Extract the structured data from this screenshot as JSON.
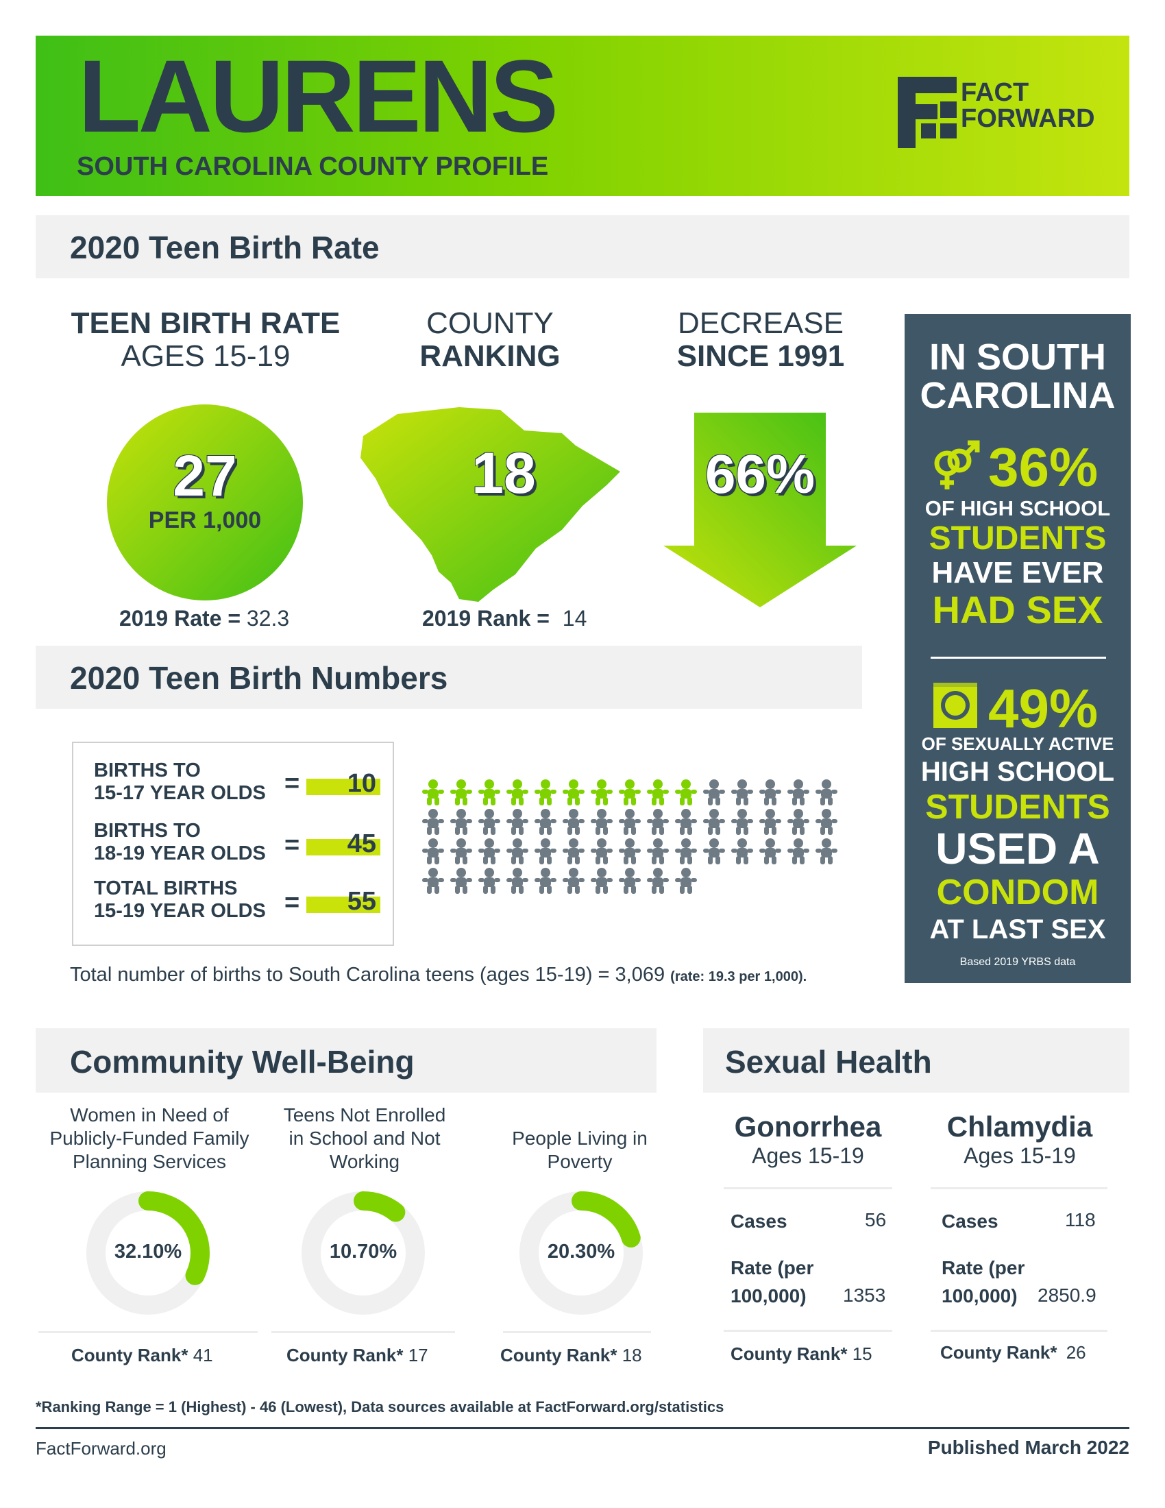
{
  "header": {
    "county": "LAURENS",
    "subtitle": "SOUTH CAROLINA COUNTY PROFILE",
    "logo_line1": "FACT",
    "logo_line2": "FORWARD"
  },
  "teen_birth_rate": {
    "section_title": "2020 Teen Birth Rate",
    "rate_head_1": "TEEN BIRTH RATE",
    "rate_head_2": "AGES 15-19",
    "rate_value": "27",
    "rate_unit": "PER 1,000",
    "rate_prev_label": "2019 Rate =",
    "rate_prev_value": "32.3",
    "rank_head_1": "COUNTY",
    "rank_head_2": "RANKING",
    "rank_value": "18",
    "rank_prev_label": "2019 Rank =",
    "rank_prev_value": "14",
    "decrease_head_1": "DECREASE",
    "decrease_head_2": "SINCE 1991",
    "decrease_value": "66%"
  },
  "sidebar": {
    "title_1": "IN SOUTH",
    "title_2": "CAROLINA",
    "stat1_value": "36%",
    "stat1_line1": "OF HIGH SCHOOL",
    "stat1_line2": "STUDENTS",
    "stat1_line3": "HAVE EVER",
    "stat1_line4": "HAD SEX",
    "stat2_value": "49%",
    "stat2_line1": "OF SEXUALLY ACTIVE",
    "stat2_line2": "HIGH SCHOOL",
    "stat2_line3": "STUDENTS",
    "stat2_line4": "USED A",
    "stat2_line5": "CONDOM",
    "stat2_line6": "AT LAST SEX",
    "source": "Based 2019 YRBS data",
    "icon1": "gender-symbols-icon",
    "icon2": "condom-icon"
  },
  "teen_birth_numbers": {
    "section_title": "2020 Teen Birth Numbers",
    "rows": [
      {
        "label_1": "BIRTHS TO",
        "label_2": "15-17 YEAR OLDS",
        "eq": "=",
        "value": "10"
      },
      {
        "label_1": "BIRTHS TO",
        "label_2": "18-19 YEAR OLDS",
        "eq": "=",
        "value": "45"
      },
      {
        "label_1": "TOTAL BIRTHS",
        "label_2": "15-19 YEAR OLDS",
        "eq": "=",
        "value": "55"
      }
    ],
    "pictogram": {
      "highlighted": 10,
      "total": 55,
      "per_row": 15,
      "highlight_color": "#7fd200",
      "base_color": "#6e7b84"
    },
    "state_total_text": "Total number of births to South Carolina teens (ages 15-19) = 3,069",
    "state_rate_text": "(rate: 19.3 per 1,000)."
  },
  "community": {
    "section_title": "Community Well-Being",
    "items": [
      {
        "label_1": "Women in Need of",
        "label_2": "Publicly-Funded Family",
        "label_3": "Planning Services",
        "value": "32.10%",
        "fraction": 0.321,
        "rank_label": "County Rank*",
        "rank": "41"
      },
      {
        "label_1": "Teens Not Enrolled",
        "label_2": "in School and Not",
        "label_3": "Working",
        "value": "10.70%",
        "fraction": 0.107,
        "rank_label": "County Rank*",
        "rank": "17"
      },
      {
        "label_1": "People Living in",
        "label_2": "Poverty",
        "label_3": "",
        "value": "20.30%",
        "fraction": 0.203,
        "rank_label": "County Rank*",
        "rank": "18"
      }
    ]
  },
  "sexual_health": {
    "section_title": "Sexual Health",
    "items": [
      {
        "title": "Gonorrhea",
        "sub": "Ages 15-19",
        "cases_label": "Cases",
        "cases": "56",
        "rate_label_1": "Rate (per",
        "rate_label_2": "100,000)",
        "rate": "1353",
        "rank_label": "County Rank*",
        "rank": "15"
      },
      {
        "title": "Chlamydia",
        "sub": "Ages 15-19",
        "cases_label": "Cases",
        "cases": "118",
        "rate_label_1": "Rate (per",
        "rate_label_2": "100,000)",
        "rate": "2850.9",
        "rank_label": "County Rank*",
        "rank": "26"
      }
    ]
  },
  "footer": {
    "footnote": "*Ranking Range = 1 (Highest) - 46 (Lowest), Data sources available at FactForward.org/statistics",
    "site": "FactForward.org",
    "published": "Published March 2022"
  },
  "colors": {
    "dark": "#2c3e4c",
    "green": "#7fd200",
    "lime": "#c8e20a",
    "sidebar": "#3f5766"
  }
}
